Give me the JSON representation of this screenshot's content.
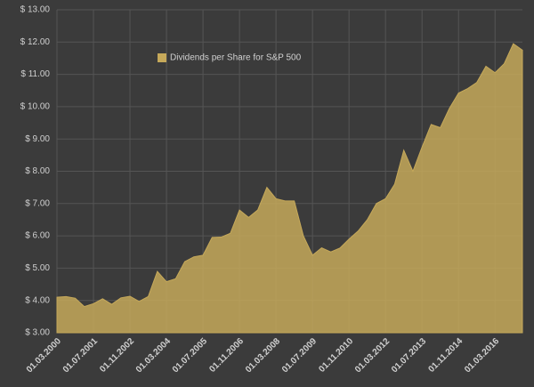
{
  "chart_data": {
    "type": "area",
    "categories": [
      "01.03.2000",
      null,
      null,
      null,
      "01.07.2001",
      null,
      null,
      null,
      "01.11.2002",
      null,
      null,
      null,
      "01.03.2004",
      null,
      null,
      null,
      "01.07.2005",
      null,
      null,
      null,
      "01.11.2006",
      null,
      null,
      null,
      "01.03.2008",
      null,
      null,
      null,
      "01.07.2009",
      null,
      null,
      null,
      "01.11.2010",
      null,
      null,
      null,
      "01.03.2012",
      null,
      null,
      null,
      "01.07.2013",
      null,
      null,
      null,
      "01.11.2014",
      null,
      null,
      null,
      "01.03.2016",
      null,
      null,
      null
    ],
    "series": [
      {
        "name": "Dividends per Share for S&P 500",
        "color": "#c6a95a",
        "values": [
          4.1,
          4.12,
          4.07,
          3.81,
          3.9,
          4.05,
          3.88,
          4.08,
          4.13,
          3.97,
          4.12,
          4.9,
          4.58,
          4.67,
          5.2,
          5.35,
          5.4,
          5.95,
          5.96,
          6.08,
          6.8,
          6.57,
          6.8,
          7.5,
          7.15,
          7.08,
          7.08,
          6.0,
          5.4,
          5.63,
          5.5,
          5.62,
          5.9,
          6.15,
          6.5,
          7.0,
          7.15,
          7.6,
          8.65,
          8.0,
          8.75,
          9.45,
          9.35,
          9.95,
          10.42,
          10.56,
          10.75,
          11.25,
          11.05,
          11.33,
          11.95,
          11.75
        ]
      }
    ],
    "ylim": [
      3,
      13
    ],
    "yticks": [
      {
        "value": 3,
        "label": "$ 3.00"
      },
      {
        "value": 4,
        "label": "$ 4.00"
      },
      {
        "value": 5,
        "label": "$ 5.00"
      },
      {
        "value": 6,
        "label": "$ 6.00"
      },
      {
        "value": 7,
        "label": "$ 7.00"
      },
      {
        "value": 8,
        "label": "$ 8.00"
      },
      {
        "value": 9,
        "label": "$ 9.00"
      },
      {
        "value": 10,
        "label": "$ 10.00"
      },
      {
        "value": 11,
        "label": "$ 11.00"
      },
      {
        "value": 12,
        "label": "$ 12.00"
      },
      {
        "value": 13,
        "label": "$ 13.00"
      }
    ],
    "grid": true,
    "legend": "top-left"
  }
}
